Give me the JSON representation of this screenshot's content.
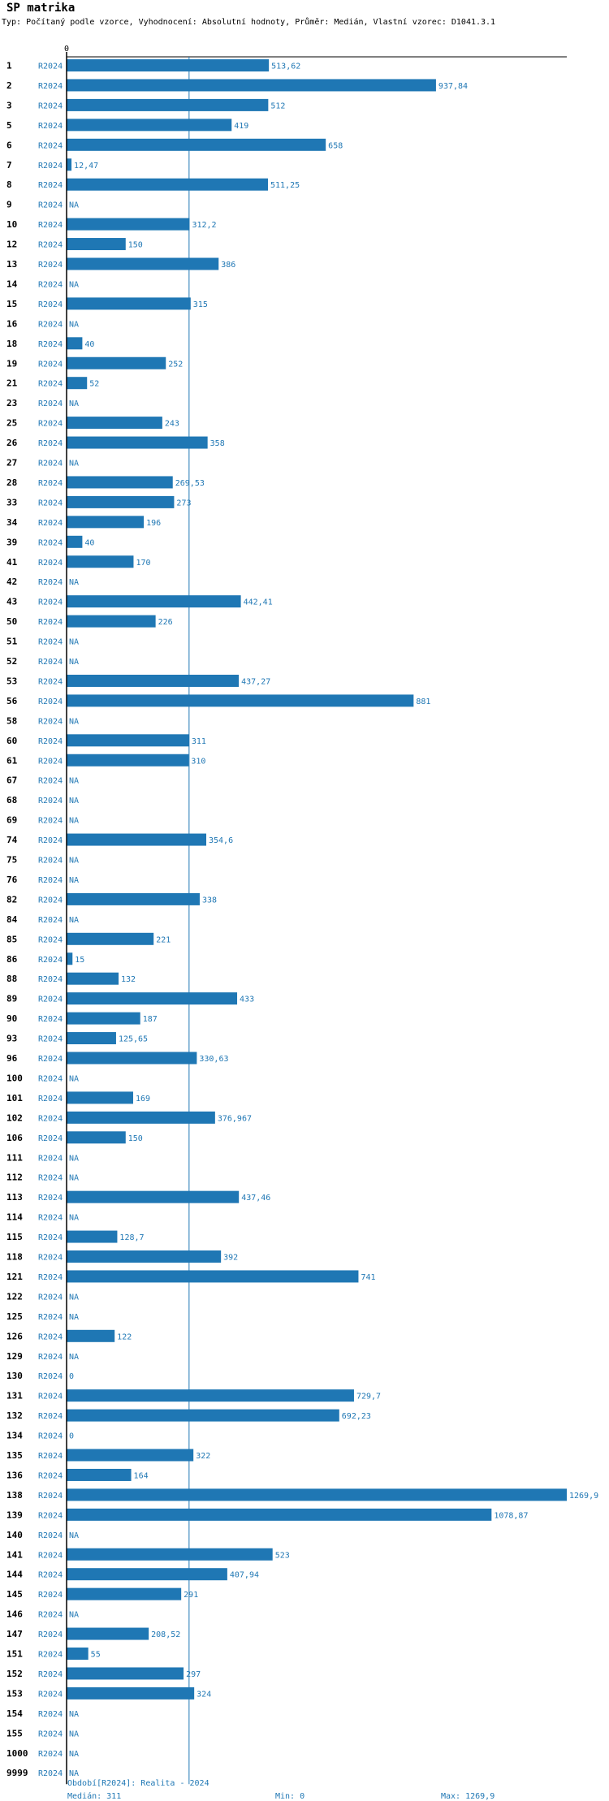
{
  "header": {
    "title": "SP matrika",
    "subtitle": "Typ: Počítaný podle vzorce, Vyhodnocení: Absolutní hodnoty, Průměr: Medián, Vlastní vzorec: D1041.3.1"
  },
  "colors": {
    "bar": "#1f77b4",
    "text": "#1f77b4",
    "axis": "#000000",
    "median": "#1f77b4"
  },
  "chart_data": {
    "type": "bar",
    "orientation": "horizontal",
    "period_label": "R2024",
    "axis_zero_label": "0",
    "xlim": [
      0,
      1269.9
    ],
    "median": 311,
    "rows": [
      {
        "id": "1",
        "value": 513.62,
        "label": "513,62"
      },
      {
        "id": "2",
        "value": 937.84,
        "label": "937,84"
      },
      {
        "id": "3",
        "value": 512,
        "label": "512"
      },
      {
        "id": "5",
        "value": 419,
        "label": "419"
      },
      {
        "id": "6",
        "value": 658,
        "label": "658"
      },
      {
        "id": "7",
        "value": 12.47,
        "label": "12,47"
      },
      {
        "id": "8",
        "value": 511.25,
        "label": "511,25"
      },
      {
        "id": "9",
        "value": null,
        "label": "NA"
      },
      {
        "id": "10",
        "value": 312.2,
        "label": "312,2"
      },
      {
        "id": "12",
        "value": 150,
        "label": "150"
      },
      {
        "id": "13",
        "value": 386,
        "label": "386"
      },
      {
        "id": "14",
        "value": null,
        "label": "NA"
      },
      {
        "id": "15",
        "value": 315,
        "label": "315"
      },
      {
        "id": "16",
        "value": null,
        "label": "NA"
      },
      {
        "id": "18",
        "value": 40,
        "label": "40"
      },
      {
        "id": "19",
        "value": 252,
        "label": "252"
      },
      {
        "id": "21",
        "value": 52,
        "label": "52"
      },
      {
        "id": "23",
        "value": null,
        "label": "NA"
      },
      {
        "id": "25",
        "value": 243,
        "label": "243"
      },
      {
        "id": "26",
        "value": 358,
        "label": "358"
      },
      {
        "id": "27",
        "value": null,
        "label": "NA"
      },
      {
        "id": "28",
        "value": 269.53,
        "label": "269,53"
      },
      {
        "id": "33",
        "value": 273,
        "label": "273"
      },
      {
        "id": "34",
        "value": 196,
        "label": "196"
      },
      {
        "id": "39",
        "value": 40,
        "label": "40"
      },
      {
        "id": "41",
        "value": 170,
        "label": "170"
      },
      {
        "id": "42",
        "value": null,
        "label": "NA"
      },
      {
        "id": "43",
        "value": 442.41,
        "label": "442,41"
      },
      {
        "id": "50",
        "value": 226,
        "label": "226"
      },
      {
        "id": "51",
        "value": null,
        "label": "NA"
      },
      {
        "id": "52",
        "value": null,
        "label": "NA"
      },
      {
        "id": "53",
        "value": 437.27,
        "label": "437,27"
      },
      {
        "id": "56",
        "value": 881,
        "label": "881"
      },
      {
        "id": "58",
        "value": null,
        "label": "NA"
      },
      {
        "id": "60",
        "value": 311,
        "label": "311"
      },
      {
        "id": "61",
        "value": 310,
        "label": "310"
      },
      {
        "id": "67",
        "value": null,
        "label": "NA"
      },
      {
        "id": "68",
        "value": null,
        "label": "NA"
      },
      {
        "id": "69",
        "value": null,
        "label": "NA"
      },
      {
        "id": "74",
        "value": 354.6,
        "label": "354,6"
      },
      {
        "id": "75",
        "value": null,
        "label": "NA"
      },
      {
        "id": "76",
        "value": null,
        "label": "NA"
      },
      {
        "id": "82",
        "value": 338,
        "label": "338"
      },
      {
        "id": "84",
        "value": null,
        "label": "NA"
      },
      {
        "id": "85",
        "value": 221,
        "label": "221"
      },
      {
        "id": "86",
        "value": 15,
        "label": "15"
      },
      {
        "id": "88",
        "value": 132,
        "label": "132"
      },
      {
        "id": "89",
        "value": 433,
        "label": "433"
      },
      {
        "id": "90",
        "value": 187,
        "label": "187"
      },
      {
        "id": "93",
        "value": 125.65,
        "label": "125,65"
      },
      {
        "id": "96",
        "value": 330.63,
        "label": "330,63"
      },
      {
        "id": "100",
        "value": null,
        "label": "NA"
      },
      {
        "id": "101",
        "value": 169,
        "label": "169"
      },
      {
        "id": "102",
        "value": 376.967,
        "label": "376,967"
      },
      {
        "id": "106",
        "value": 150,
        "label": "150"
      },
      {
        "id": "111",
        "value": null,
        "label": "NA"
      },
      {
        "id": "112",
        "value": null,
        "label": "NA"
      },
      {
        "id": "113",
        "value": 437.46,
        "label": "437,46"
      },
      {
        "id": "114",
        "value": null,
        "label": "NA"
      },
      {
        "id": "115",
        "value": 128.7,
        "label": "128,7"
      },
      {
        "id": "118",
        "value": 392,
        "label": "392"
      },
      {
        "id": "121",
        "value": 741,
        "label": "741"
      },
      {
        "id": "122",
        "value": null,
        "label": "NA"
      },
      {
        "id": "125",
        "value": null,
        "label": "NA"
      },
      {
        "id": "126",
        "value": 122,
        "label": "122"
      },
      {
        "id": "129",
        "value": null,
        "label": "NA"
      },
      {
        "id": "130",
        "value": 0,
        "label": "0"
      },
      {
        "id": "131",
        "value": 729.7,
        "label": "729,7"
      },
      {
        "id": "132",
        "value": 692.23,
        "label": "692,23"
      },
      {
        "id": "134",
        "value": 0,
        "label": "0"
      },
      {
        "id": "135",
        "value": 322,
        "label": "322"
      },
      {
        "id": "136",
        "value": 164,
        "label": "164"
      },
      {
        "id": "138",
        "value": 1269.9,
        "label": "1269,9"
      },
      {
        "id": "139",
        "value": 1078.87,
        "label": "1078,87"
      },
      {
        "id": "140",
        "value": null,
        "label": "NA"
      },
      {
        "id": "141",
        "value": 523,
        "label": "523"
      },
      {
        "id": "144",
        "value": 407.94,
        "label": "407,94"
      },
      {
        "id": "145",
        "value": 291,
        "label": "291"
      },
      {
        "id": "146",
        "value": null,
        "label": "NA"
      },
      {
        "id": "147",
        "value": 208.52,
        "label": "208,52"
      },
      {
        "id": "151",
        "value": 55,
        "label": "55"
      },
      {
        "id": "152",
        "value": 297,
        "label": "297"
      },
      {
        "id": "153",
        "value": 324,
        "label": "324"
      },
      {
        "id": "154",
        "value": null,
        "label": "NA"
      },
      {
        "id": "155",
        "value": null,
        "label": "NA"
      },
      {
        "id": "1000",
        "value": null,
        "label": "NA"
      },
      {
        "id": "9999",
        "value": null,
        "label": "NA"
      }
    ]
  },
  "footer": {
    "period": "Období[R2024]: Realita - 2024",
    "median": "Medián: 311",
    "min": "Min: 0",
    "max": "Max: 1269,9"
  }
}
